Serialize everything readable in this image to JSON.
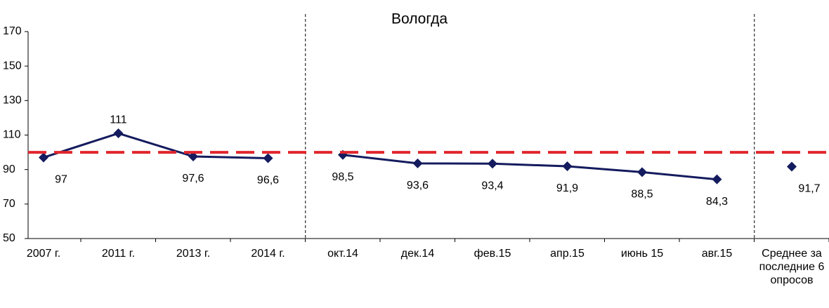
{
  "chart_data": {
    "type": "line",
    "title": "Вологда",
    "categories": [
      "2007 г.",
      "2011 г.",
      "2013 г.",
      "2014 г.",
      "окт.14",
      "дек.14",
      "фев.15",
      "апр.15",
      "июнь 15",
      "авг.15",
      "Среднее за последние 6 опросов"
    ],
    "series": [
      {
        "color": "#141b5e",
        "values": [
          97,
          111,
          97.6,
          96.6,
          null,
          null,
          null,
          null,
          null,
          null,
          null
        ],
        "value_labels": [
          "97",
          "111",
          "97,6",
          "96,6",
          null,
          null,
          null,
          null,
          null,
          null,
          null
        ]
      },
      {
        "color": "#141b5e",
        "values": [
          null,
          null,
          null,
          null,
          98.5,
          93.6,
          93.4,
          91.9,
          88.5,
          84.3,
          null
        ],
        "value_labels": [
          null,
          null,
          null,
          null,
          "98,5",
          "93,6",
          "93,4",
          "91,9",
          "88,5",
          "84,3",
          null
        ]
      },
      {
        "color": "#141b5e",
        "values": [
          null,
          null,
          null,
          null,
          null,
          null,
          null,
          null,
          null,
          null,
          91.7
        ],
        "value_labels": [
          null,
          null,
          null,
          null,
          null,
          null,
          null,
          null,
          null,
          null,
          "91,7"
        ]
      }
    ],
    "reference_line": {
      "value": 100,
      "color": "#e0262c"
    },
    "ylim": [
      50,
      170
    ],
    "yticks": [
      50,
      70,
      90,
      110,
      130,
      150,
      170
    ],
    "grid": false
  }
}
